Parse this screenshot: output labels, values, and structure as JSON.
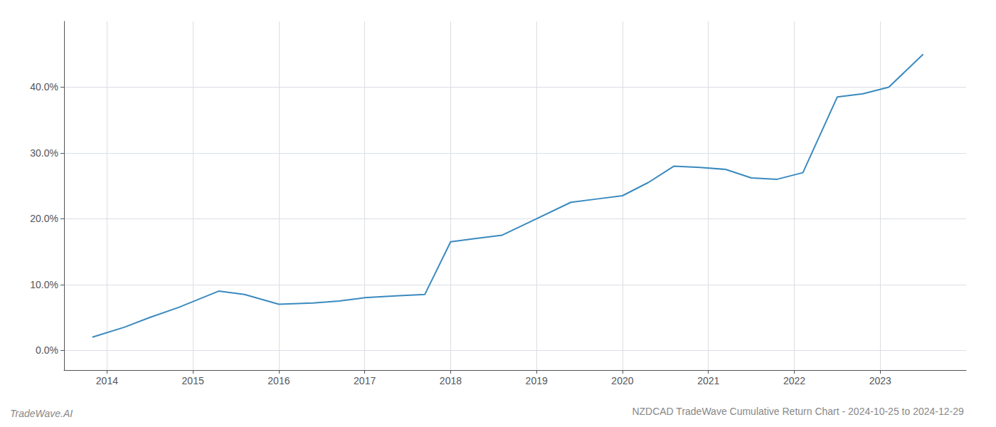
{
  "chart_data": {
    "type": "line",
    "title": "NZDCAD TradeWave Cumulative Return Chart - 2024-10-25 to 2024-12-29",
    "annotations": [
      "TradeWave.AI"
    ],
    "x": [
      2013.83,
      2014.2,
      2014.5,
      2014.83,
      2015.3,
      2015.6,
      2016.0,
      2016.4,
      2016.7,
      2017.0,
      2017.4,
      2017.7,
      2018.0,
      2018.3,
      2018.6,
      2019.0,
      2019.4,
      2019.7,
      2020.0,
      2020.3,
      2020.6,
      2020.9,
      2021.2,
      2021.5,
      2021.8,
      2022.1,
      2022.5,
      2022.8,
      2023.1,
      2023.5
    ],
    "values": [
      2.0,
      3.5,
      5.0,
      6.5,
      9.0,
      8.5,
      7.0,
      7.2,
      7.5,
      8.0,
      8.3,
      8.5,
      16.5,
      17.0,
      17.5,
      20.0,
      22.5,
      23.0,
      23.5,
      25.5,
      28.0,
      27.8,
      27.5,
      26.2,
      26.0,
      27.0,
      38.5,
      39.0,
      40.0,
      45.0
    ],
    "color": "#3a8abf",
    "xlim": [
      2013.5,
      2024.0
    ],
    "xticks": [
      2014,
      2015,
      2016,
      2017,
      2018,
      2019,
      2020,
      2021,
      2022,
      2023
    ],
    "ylim": [
      -3.0,
      50.0
    ],
    "yticks": [
      {
        "value": 0.0,
        "label": "0.0%"
      },
      {
        "value": 10.0,
        "label": "10.0%"
      },
      {
        "value": 20.0,
        "label": "20.0%"
      },
      {
        "value": 30.0,
        "label": "30.0%"
      },
      {
        "value": 40.0,
        "label": "40.0%"
      }
    ],
    "grid": true
  }
}
